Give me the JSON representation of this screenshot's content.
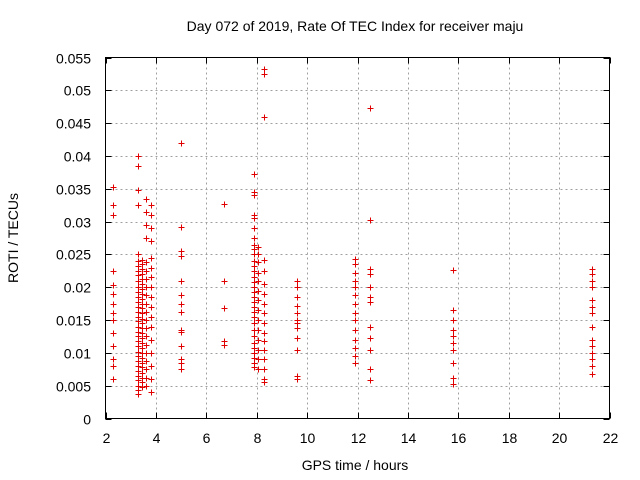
{
  "chart_data": {
    "type": "scatter",
    "title": "Day 072 of 2019, Rate Of TEC Index for receiver maju",
    "xlabel": "GPS time / hours",
    "ylabel": "ROTI / TECUs",
    "xlim": [
      2,
      22
    ],
    "ylim": [
      0,
      0.055
    ],
    "xticks": [
      2,
      4,
      6,
      8,
      10,
      12,
      14,
      16,
      18,
      20,
      22
    ],
    "yticks": [
      0,
      0.005,
      0.01,
      0.015,
      0.02,
      0.025,
      0.03,
      0.035,
      0.04,
      0.045,
      0.05,
      0.055
    ],
    "xtick_labels": [
      "2",
      "4",
      "6",
      "8",
      "10",
      "12",
      "14",
      "16",
      "18",
      "20",
      "22"
    ],
    "ytick_labels": [
      "0",
      "0.005",
      "0.01",
      "0.015",
      "0.02",
      "0.025",
      "0.03",
      "0.035",
      "0.04",
      "0.045",
      "0.05",
      "0.055"
    ],
    "grid": true,
    "marker": "+",
    "color": "#e00000",
    "series": [
      {
        "name": "ROTI",
        "points": [
          [
            2.3,
            0.0353
          ],
          [
            2.3,
            0.0325
          ],
          [
            2.3,
            0.031
          ],
          [
            2.3,
            0.0225
          ],
          [
            2.3,
            0.0203
          ],
          [
            2.3,
            0.019
          ],
          [
            2.3,
            0.0175
          ],
          [
            2.3,
            0.016
          ],
          [
            2.3,
            0.015
          ],
          [
            2.3,
            0.013
          ],
          [
            2.3,
            0.011
          ],
          [
            2.3,
            0.009
          ],
          [
            2.3,
            0.008
          ],
          [
            2.3,
            0.006
          ],
          [
            3.3,
            0.04
          ],
          [
            3.3,
            0.0385
          ],
          [
            3.3,
            0.0348
          ],
          [
            3.3,
            0.0325
          ],
          [
            3.3,
            0.025
          ],
          [
            3.3,
            0.024
          ],
          [
            3.3,
            0.0232
          ],
          [
            3.3,
            0.0225
          ],
          [
            3.3,
            0.0218
          ],
          [
            3.3,
            0.021
          ],
          [
            3.3,
            0.02
          ],
          [
            3.3,
            0.0192
          ],
          [
            3.3,
            0.0185
          ],
          [
            3.3,
            0.0178
          ],
          [
            3.3,
            0.017
          ],
          [
            3.3,
            0.0162
          ],
          [
            3.3,
            0.0155
          ],
          [
            3.3,
            0.0148
          ],
          [
            3.3,
            0.014
          ],
          [
            3.3,
            0.0132
          ],
          [
            3.3,
            0.0125
          ],
          [
            3.3,
            0.0118
          ],
          [
            3.3,
            0.011
          ],
          [
            3.3,
            0.0102
          ],
          [
            3.3,
            0.0095
          ],
          [
            3.3,
            0.0088
          ],
          [
            3.3,
            0.008
          ],
          [
            3.3,
            0.0072
          ],
          [
            3.3,
            0.0065
          ],
          [
            3.3,
            0.0058
          ],
          [
            3.3,
            0.005
          ],
          [
            3.3,
            0.0043
          ],
          [
            3.3,
            0.0038
          ],
          [
            3.45,
            0.0242
          ],
          [
            3.45,
            0.0235
          ],
          [
            3.45,
            0.0228
          ],
          [
            3.45,
            0.022
          ],
          [
            3.45,
            0.0212
          ],
          [
            3.45,
            0.0205
          ],
          [
            3.45,
            0.0198
          ],
          [
            3.45,
            0.019
          ],
          [
            3.45,
            0.0182
          ],
          [
            3.45,
            0.0175
          ],
          [
            3.45,
            0.0168
          ],
          [
            3.45,
            0.016
          ],
          [
            3.45,
            0.0152
          ],
          [
            3.45,
            0.0145
          ],
          [
            3.45,
            0.0138
          ],
          [
            3.45,
            0.013
          ],
          [
            3.45,
            0.0122
          ],
          [
            3.45,
            0.0115
          ],
          [
            3.45,
            0.0108
          ],
          [
            3.45,
            0.01
          ],
          [
            3.45,
            0.0092
          ],
          [
            3.45,
            0.0085
          ],
          [
            3.45,
            0.0078
          ],
          [
            3.45,
            0.007
          ],
          [
            3.45,
            0.0062
          ],
          [
            3.45,
            0.0055
          ],
          [
            3.45,
            0.0048
          ],
          [
            3.6,
            0.0335
          ],
          [
            3.6,
            0.0315
          ],
          [
            3.6,
            0.0295
          ],
          [
            3.6,
            0.0275
          ],
          [
            3.6,
            0.0238
          ],
          [
            3.6,
            0.0225
          ],
          [
            3.6,
            0.0212
          ],
          [
            3.6,
            0.02
          ],
          [
            3.6,
            0.0188
          ],
          [
            3.6,
            0.0175
          ],
          [
            3.6,
            0.0162
          ],
          [
            3.6,
            0.015
          ],
          [
            3.6,
            0.0138
          ],
          [
            3.6,
            0.0125
          ],
          [
            3.6,
            0.0112
          ],
          [
            3.6,
            0.01
          ],
          [
            3.6,
            0.0088
          ],
          [
            3.6,
            0.0075
          ],
          [
            3.6,
            0.0062
          ],
          [
            3.6,
            0.005
          ],
          [
            3.8,
            0.0325
          ],
          [
            3.8,
            0.031
          ],
          [
            3.8,
            0.029
          ],
          [
            3.8,
            0.027
          ],
          [
            3.8,
            0.0245
          ],
          [
            3.8,
            0.023
          ],
          [
            3.8,
            0.0215
          ],
          [
            3.8,
            0.02
          ],
          [
            3.8,
            0.0185
          ],
          [
            3.8,
            0.017
          ],
          [
            3.8,
            0.0155
          ],
          [
            3.8,
            0.014
          ],
          [
            3.8,
            0.012
          ],
          [
            3.8,
            0.01
          ],
          [
            3.8,
            0.008
          ],
          [
            3.8,
            0.006
          ],
          [
            3.8,
            0.004
          ],
          [
            5.0,
            0.042
          ],
          [
            5.0,
            0.0292
          ],
          [
            5.0,
            0.0255
          ],
          [
            5.0,
            0.0248
          ],
          [
            5.0,
            0.021
          ],
          [
            5.0,
            0.0188
          ],
          [
            5.0,
            0.0175
          ],
          [
            5.0,
            0.0162
          ],
          [
            5.0,
            0.0135
          ],
          [
            5.0,
            0.0132
          ],
          [
            5.0,
            0.011
          ],
          [
            5.0,
            0.009
          ],
          [
            5.0,
            0.0085
          ],
          [
            5.0,
            0.0075
          ],
          [
            6.7,
            0.0327
          ],
          [
            6.7,
            0.021
          ],
          [
            6.7,
            0.0168
          ],
          [
            6.7,
            0.0118
          ],
          [
            6.7,
            0.0112
          ],
          [
            7.9,
            0.0373
          ],
          [
            7.9,
            0.0345
          ],
          [
            7.9,
            0.034
          ],
          [
            7.9,
            0.031
          ],
          [
            7.9,
            0.0305
          ],
          [
            7.9,
            0.029
          ],
          [
            7.9,
            0.0275
          ],
          [
            7.9,
            0.0265
          ],
          [
            7.9,
            0.0258
          ],
          [
            7.9,
            0.025
          ],
          [
            7.9,
            0.024
          ],
          [
            7.9,
            0.0232
          ],
          [
            7.9,
            0.0225
          ],
          [
            7.9,
            0.0215
          ],
          [
            7.9,
            0.0208
          ],
          [
            7.9,
            0.02
          ],
          [
            7.9,
            0.0192
          ],
          [
            7.9,
            0.0185
          ],
          [
            7.9,
            0.0178
          ],
          [
            7.9,
            0.017
          ],
          [
            7.9,
            0.0162
          ],
          [
            7.9,
            0.0155
          ],
          [
            7.9,
            0.0145
          ],
          [
            7.9,
            0.0135
          ],
          [
            7.9,
            0.0125
          ],
          [
            7.9,
            0.0115
          ],
          [
            7.9,
            0.0108
          ],
          [
            7.9,
            0.01
          ],
          [
            7.9,
            0.0092
          ],
          [
            7.9,
            0.0085
          ],
          [
            7.9,
            0.0078
          ],
          [
            8.05,
            0.0262
          ],
          [
            8.05,
            0.025
          ],
          [
            8.05,
            0.0238
          ],
          [
            8.05,
            0.0222
          ],
          [
            8.05,
            0.021
          ],
          [
            8.05,
            0.0195
          ],
          [
            8.05,
            0.018
          ],
          [
            8.05,
            0.0165
          ],
          [
            8.05,
            0.015
          ],
          [
            8.05,
            0.0135
          ],
          [
            8.05,
            0.012
          ],
          [
            8.05,
            0.0105
          ],
          [
            8.05,
            0.009
          ],
          [
            8.05,
            0.0075
          ],
          [
            8.3,
            0.0533
          ],
          [
            8.3,
            0.0525
          ],
          [
            8.3,
            0.046
          ],
          [
            8.3,
            0.0242
          ],
          [
            8.3,
            0.0225
          ],
          [
            8.3,
            0.0205
          ],
          [
            8.3,
            0.019
          ],
          [
            8.3,
            0.0175
          ],
          [
            8.3,
            0.016
          ],
          [
            8.3,
            0.0145
          ],
          [
            8.3,
            0.013
          ],
          [
            8.3,
            0.0118
          ],
          [
            8.3,
            0.0105
          ],
          [
            8.3,
            0.009
          ],
          [
            8.3,
            0.0075
          ],
          [
            8.3,
            0.006
          ],
          [
            8.3,
            0.0055
          ],
          [
            9.6,
            0.021
          ],
          [
            9.6,
            0.02
          ],
          [
            9.6,
            0.0185
          ],
          [
            9.6,
            0.0172
          ],
          [
            9.6,
            0.016
          ],
          [
            9.6,
            0.015
          ],
          [
            9.6,
            0.0145
          ],
          [
            9.6,
            0.0138
          ],
          [
            9.6,
            0.0122
          ],
          [
            9.6,
            0.0105
          ],
          [
            9.6,
            0.0065
          ],
          [
            9.6,
            0.006
          ],
          [
            11.9,
            0.0243
          ],
          [
            11.9,
            0.0235
          ],
          [
            11.9,
            0.0222
          ],
          [
            11.9,
            0.021
          ],
          [
            11.9,
            0.02
          ],
          [
            11.9,
            0.0188
          ],
          [
            11.9,
            0.0175
          ],
          [
            11.9,
            0.016
          ],
          [
            11.9,
            0.015
          ],
          [
            11.9,
            0.0135
          ],
          [
            11.9,
            0.012
          ],
          [
            11.9,
            0.0108
          ],
          [
            11.9,
            0.0095
          ],
          [
            11.9,
            0.0085
          ],
          [
            12.5,
            0.0473
          ],
          [
            12.5,
            0.0302
          ],
          [
            12.5,
            0.0228
          ],
          [
            12.5,
            0.022
          ],
          [
            12.5,
            0.02
          ],
          [
            12.5,
            0.0185
          ],
          [
            12.5,
            0.0178
          ],
          [
            12.5,
            0.014
          ],
          [
            12.5,
            0.0122
          ],
          [
            12.5,
            0.0105
          ],
          [
            12.5,
            0.0075
          ],
          [
            12.5,
            0.0058
          ],
          [
            15.8,
            0.0227
          ],
          [
            15.8,
            0.0165
          ],
          [
            15.8,
            0.015
          ],
          [
            15.8,
            0.0135
          ],
          [
            15.8,
            0.0125
          ],
          [
            15.8,
            0.0115
          ],
          [
            15.8,
            0.0105
          ],
          [
            15.8,
            0.0085
          ],
          [
            15.8,
            0.0062
          ],
          [
            15.8,
            0.0052
          ],
          [
            21.3,
            0.0228
          ],
          [
            21.3,
            0.022
          ],
          [
            21.3,
            0.021
          ],
          [
            21.3,
            0.02
          ],
          [
            21.3,
            0.018
          ],
          [
            21.3,
            0.017
          ],
          [
            21.3,
            0.016
          ],
          [
            21.3,
            0.014
          ],
          [
            21.3,
            0.012
          ],
          [
            21.3,
            0.011
          ],
          [
            21.3,
            0.01
          ],
          [
            21.3,
            0.009
          ],
          [
            21.3,
            0.008
          ],
          [
            21.3,
            0.0068
          ]
        ]
      }
    ]
  }
}
